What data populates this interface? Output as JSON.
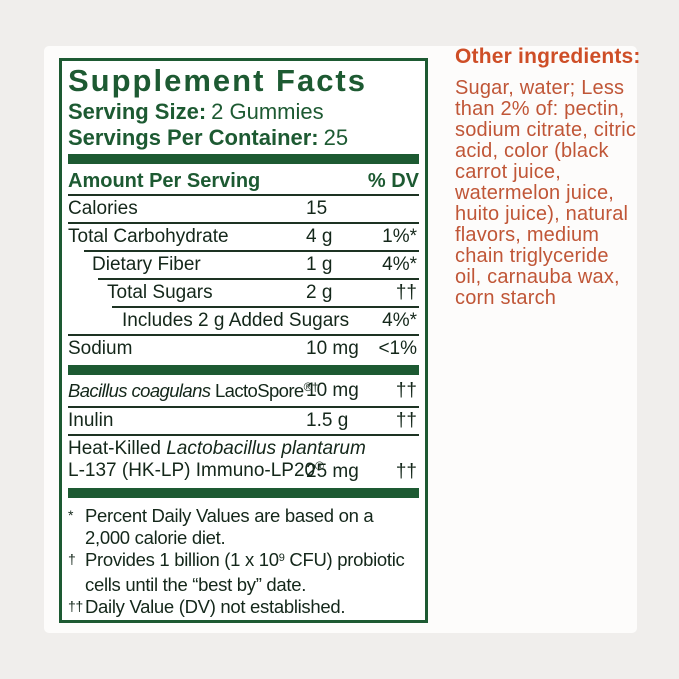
{
  "colors": {
    "background": "#f0eeec",
    "card": "#fdfcfb",
    "label_green": "#1d5a32",
    "text_dark": "#14271a",
    "other_ingredients_heading": "#ce4e27",
    "other_ingredients_body": "#c05637"
  },
  "supplement_facts": {
    "title": "Supplement Facts",
    "serving_size_label": "Serving Size:",
    "serving_size_value": "2 Gummies",
    "servings_label": "Servings Per Container:",
    "servings_value": "25",
    "header": {
      "amount": "Amount Per Serving",
      "dv": "% DV"
    },
    "rows": [
      {
        "name": "Calories",
        "amount": "15",
        "dv": ""
      },
      {
        "name": "Total Carbohydrate",
        "amount": "4 g",
        "dv": "1%*"
      },
      {
        "name": "Dietary Fiber",
        "amount": "1 g",
        "dv": "4%*"
      },
      {
        "name": "Total Sugars",
        "amount": "2 g",
        "dv": "††"
      },
      {
        "name": "Includes 2 g Added Sugars",
        "amount": "",
        "dv": "4%*"
      },
      {
        "name": "Sodium",
        "amount": "10 mg",
        "dv": "<1%"
      }
    ],
    "extra_rows": [
      {
        "name_italic": "Bacillus coagulans",
        "name_rest": " LactoSpore",
        "name_sup": "®†",
        "amount": "10 mg",
        "dv": "††"
      },
      {
        "name": "Inulin",
        "amount": "1.5 g",
        "dv": "††"
      },
      {
        "line1_prefix": "Heat-Killed ",
        "line1_italic": "Lactobacillus plantarum",
        "line2": "L-137 (HK-LP) Immuno-LP20",
        "line2_sup": "®",
        "amount": "25 mg",
        "dv": "††"
      }
    ],
    "footnotes": [
      {
        "marker": "*",
        "text": "Percent Daily Values are based on a\n2,000 calorie diet."
      },
      {
        "marker": "†",
        "pre": "Provides 1 billion (1 x 10",
        "sup": "9",
        "post": " CFU) probiotic\ncells until the “best by” date."
      },
      {
        "marker": "††",
        "text": "Daily Value (DV) not established."
      }
    ]
  },
  "other_ingredients": {
    "heading": "Other ingredients:",
    "body": "Sugar, water; Less\nthan 2% of: pectin,\nsodium citrate, citric\nacid, color (black\ncarrot juice,\nwatermelon juice,\nhuito juice), natural\nflavors, medium\nchain triglyceride\noil, carnauba wax,\ncorn starch"
  }
}
